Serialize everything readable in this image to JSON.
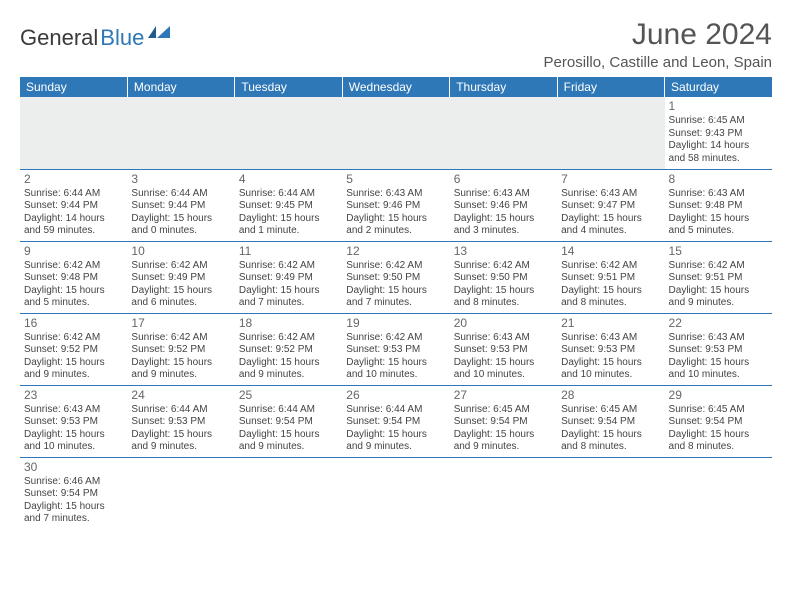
{
  "brand": {
    "part1": "General",
    "part2": "Blue"
  },
  "title": "June 2024",
  "location": "Perosillo, Castille and Leon, Spain",
  "colors": {
    "header_bg": "#2f78b7",
    "header_text": "#ffffff",
    "border": "#2f78b7",
    "empty_bg": "#eceded",
    "text": "#444444"
  },
  "weekdays": [
    "Sunday",
    "Monday",
    "Tuesday",
    "Wednesday",
    "Thursday",
    "Friday",
    "Saturday"
  ],
  "weeks": [
    [
      null,
      null,
      null,
      null,
      null,
      null,
      {
        "n": "1",
        "sr": "Sunrise: 6:45 AM",
        "ss": "Sunset: 9:43 PM",
        "dl": "Daylight: 14 hours and 58 minutes."
      }
    ],
    [
      {
        "n": "2",
        "sr": "Sunrise: 6:44 AM",
        "ss": "Sunset: 9:44 PM",
        "dl": "Daylight: 14 hours and 59 minutes."
      },
      {
        "n": "3",
        "sr": "Sunrise: 6:44 AM",
        "ss": "Sunset: 9:44 PM",
        "dl": "Daylight: 15 hours and 0 minutes."
      },
      {
        "n": "4",
        "sr": "Sunrise: 6:44 AM",
        "ss": "Sunset: 9:45 PM",
        "dl": "Daylight: 15 hours and 1 minute."
      },
      {
        "n": "5",
        "sr": "Sunrise: 6:43 AM",
        "ss": "Sunset: 9:46 PM",
        "dl": "Daylight: 15 hours and 2 minutes."
      },
      {
        "n": "6",
        "sr": "Sunrise: 6:43 AM",
        "ss": "Sunset: 9:46 PM",
        "dl": "Daylight: 15 hours and 3 minutes."
      },
      {
        "n": "7",
        "sr": "Sunrise: 6:43 AM",
        "ss": "Sunset: 9:47 PM",
        "dl": "Daylight: 15 hours and 4 minutes."
      },
      {
        "n": "8",
        "sr": "Sunrise: 6:43 AM",
        "ss": "Sunset: 9:48 PM",
        "dl": "Daylight: 15 hours and 5 minutes."
      }
    ],
    [
      {
        "n": "9",
        "sr": "Sunrise: 6:42 AM",
        "ss": "Sunset: 9:48 PM",
        "dl": "Daylight: 15 hours and 5 minutes."
      },
      {
        "n": "10",
        "sr": "Sunrise: 6:42 AM",
        "ss": "Sunset: 9:49 PM",
        "dl": "Daylight: 15 hours and 6 minutes."
      },
      {
        "n": "11",
        "sr": "Sunrise: 6:42 AM",
        "ss": "Sunset: 9:49 PM",
        "dl": "Daylight: 15 hours and 7 minutes."
      },
      {
        "n": "12",
        "sr": "Sunrise: 6:42 AM",
        "ss": "Sunset: 9:50 PM",
        "dl": "Daylight: 15 hours and 7 minutes."
      },
      {
        "n": "13",
        "sr": "Sunrise: 6:42 AM",
        "ss": "Sunset: 9:50 PM",
        "dl": "Daylight: 15 hours and 8 minutes."
      },
      {
        "n": "14",
        "sr": "Sunrise: 6:42 AM",
        "ss": "Sunset: 9:51 PM",
        "dl": "Daylight: 15 hours and 8 minutes."
      },
      {
        "n": "15",
        "sr": "Sunrise: 6:42 AM",
        "ss": "Sunset: 9:51 PM",
        "dl": "Daylight: 15 hours and 9 minutes."
      }
    ],
    [
      {
        "n": "16",
        "sr": "Sunrise: 6:42 AM",
        "ss": "Sunset: 9:52 PM",
        "dl": "Daylight: 15 hours and 9 minutes."
      },
      {
        "n": "17",
        "sr": "Sunrise: 6:42 AM",
        "ss": "Sunset: 9:52 PM",
        "dl": "Daylight: 15 hours and 9 minutes."
      },
      {
        "n": "18",
        "sr": "Sunrise: 6:42 AM",
        "ss": "Sunset: 9:52 PM",
        "dl": "Daylight: 15 hours and 9 minutes."
      },
      {
        "n": "19",
        "sr": "Sunrise: 6:42 AM",
        "ss": "Sunset: 9:53 PM",
        "dl": "Daylight: 15 hours and 10 minutes."
      },
      {
        "n": "20",
        "sr": "Sunrise: 6:43 AM",
        "ss": "Sunset: 9:53 PM",
        "dl": "Daylight: 15 hours and 10 minutes."
      },
      {
        "n": "21",
        "sr": "Sunrise: 6:43 AM",
        "ss": "Sunset: 9:53 PM",
        "dl": "Daylight: 15 hours and 10 minutes."
      },
      {
        "n": "22",
        "sr": "Sunrise: 6:43 AM",
        "ss": "Sunset: 9:53 PM",
        "dl": "Daylight: 15 hours and 10 minutes."
      }
    ],
    [
      {
        "n": "23",
        "sr": "Sunrise: 6:43 AM",
        "ss": "Sunset: 9:53 PM",
        "dl": "Daylight: 15 hours and 10 minutes."
      },
      {
        "n": "24",
        "sr": "Sunrise: 6:44 AM",
        "ss": "Sunset: 9:53 PM",
        "dl": "Daylight: 15 hours and 9 minutes."
      },
      {
        "n": "25",
        "sr": "Sunrise: 6:44 AM",
        "ss": "Sunset: 9:54 PM",
        "dl": "Daylight: 15 hours and 9 minutes."
      },
      {
        "n": "26",
        "sr": "Sunrise: 6:44 AM",
        "ss": "Sunset: 9:54 PM",
        "dl": "Daylight: 15 hours and 9 minutes."
      },
      {
        "n": "27",
        "sr": "Sunrise: 6:45 AM",
        "ss": "Sunset: 9:54 PM",
        "dl": "Daylight: 15 hours and 9 minutes."
      },
      {
        "n": "28",
        "sr": "Sunrise: 6:45 AM",
        "ss": "Sunset: 9:54 PM",
        "dl": "Daylight: 15 hours and 8 minutes."
      },
      {
        "n": "29",
        "sr": "Sunrise: 6:45 AM",
        "ss": "Sunset: 9:54 PM",
        "dl": "Daylight: 15 hours and 8 minutes."
      }
    ],
    [
      {
        "n": "30",
        "sr": "Sunrise: 6:46 AM",
        "ss": "Sunset: 9:54 PM",
        "dl": "Daylight: 15 hours and 7 minutes."
      },
      null,
      null,
      null,
      null,
      null,
      null
    ]
  ]
}
